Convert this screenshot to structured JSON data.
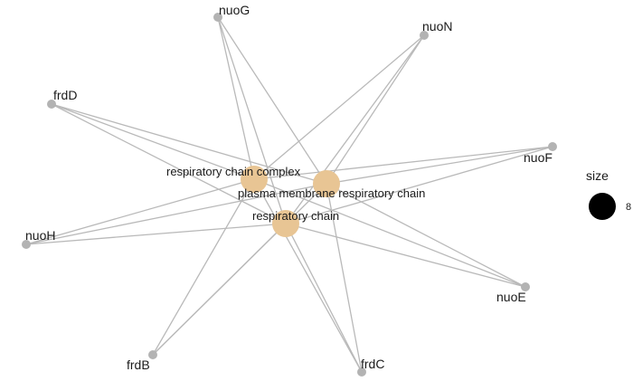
{
  "colors": {
    "edge": "#b9b9b9",
    "gene_node": "#b3b3b3",
    "term_node": "#e8c594",
    "legend_dot": "#000000",
    "background": "#ffffff"
  },
  "terms": [
    {
      "id": "rcc",
      "label": "respiratory chain complex"
    },
    {
      "id": "pmrc",
      "label": "plasma membrane respiratory chain"
    },
    {
      "id": "rc",
      "label": "respiratory chain"
    }
  ],
  "genes": [
    {
      "id": "nuoG",
      "label": "nuoG"
    },
    {
      "id": "nuoN",
      "label": "nuoN"
    },
    {
      "id": "frdD",
      "label": "frdD"
    },
    {
      "id": "nuoF",
      "label": "nuoF"
    },
    {
      "id": "nuoH",
      "label": "nuoH"
    },
    {
      "id": "nuoE",
      "label": "nuoE"
    },
    {
      "id": "frdB",
      "label": "frdB"
    },
    {
      "id": "frdC",
      "label": "frdC"
    }
  ],
  "edges": [
    [
      "rcc",
      "nuoG"
    ],
    [
      "rcc",
      "nuoN"
    ],
    [
      "rcc",
      "frdD"
    ],
    [
      "rcc",
      "nuoF"
    ],
    [
      "rcc",
      "nuoH"
    ],
    [
      "rcc",
      "nuoE"
    ],
    [
      "rcc",
      "frdB"
    ],
    [
      "rcc",
      "frdC"
    ],
    [
      "pmrc",
      "nuoG"
    ],
    [
      "pmrc",
      "nuoN"
    ],
    [
      "pmrc",
      "frdD"
    ],
    [
      "pmrc",
      "nuoF"
    ],
    [
      "pmrc",
      "nuoH"
    ],
    [
      "pmrc",
      "nuoE"
    ],
    [
      "pmrc",
      "frdB"
    ],
    [
      "pmrc",
      "frdC"
    ],
    [
      "rc",
      "nuoG"
    ],
    [
      "rc",
      "nuoN"
    ],
    [
      "rc",
      "frdD"
    ],
    [
      "rc",
      "nuoF"
    ],
    [
      "rc",
      "nuoH"
    ],
    [
      "rc",
      "nuoE"
    ],
    [
      "rc",
      "frdB"
    ],
    [
      "rc",
      "frdC"
    ]
  ],
  "legend": {
    "title": "size",
    "value": "8"
  }
}
